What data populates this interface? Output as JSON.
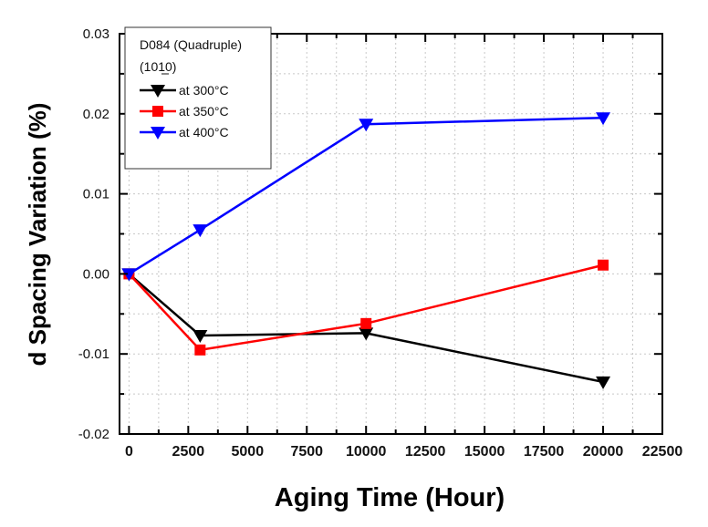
{
  "chart_data": {
    "type": "line",
    "title": "",
    "xlabel": "Aging Time (Hour)",
    "ylabel": "d Spacing Variation (%)",
    "xlim": [
      -400,
      22500
    ],
    "ylim": [
      -0.02,
      0.03
    ],
    "xticks": [
      0,
      2500,
      5000,
      7500,
      10000,
      12500,
      15000,
      17500,
      20000,
      22500
    ],
    "xtick_labels": [
      "0",
      "2500",
      "5000",
      "7500",
      "10000",
      "12500",
      "15000",
      "17500",
      "20000",
      "22500"
    ],
    "yticks": [
      -0.02,
      -0.01,
      0.0,
      0.01,
      0.02,
      0.03
    ],
    "ytick_labels": [
      "-0.02",
      "-0.01",
      "0.00",
      "0.01",
      "0.02",
      "0.03"
    ],
    "grid": true,
    "legend_position": "top-left",
    "legend_title": [
      "D084 (Quadruple)",
      "(1010)"
    ],
    "x": [
      0,
      3000,
      10000,
      20000
    ],
    "series": [
      {
        "name": "at 300°C",
        "color": "#000000",
        "marker": "triangle-down",
        "values": [
          0.0,
          -0.0077,
          -0.0074,
          -0.0135
        ]
      },
      {
        "name": "at 350°C",
        "color": "#ff0000",
        "marker": "square",
        "values": [
          0.0,
          -0.0095,
          -0.0062,
          0.0011
        ]
      },
      {
        "name": "at 400°C",
        "color": "#0000ff",
        "marker": "triangle-down",
        "values": [
          0.0,
          0.0055,
          0.0187,
          0.0195
        ]
      }
    ]
  }
}
